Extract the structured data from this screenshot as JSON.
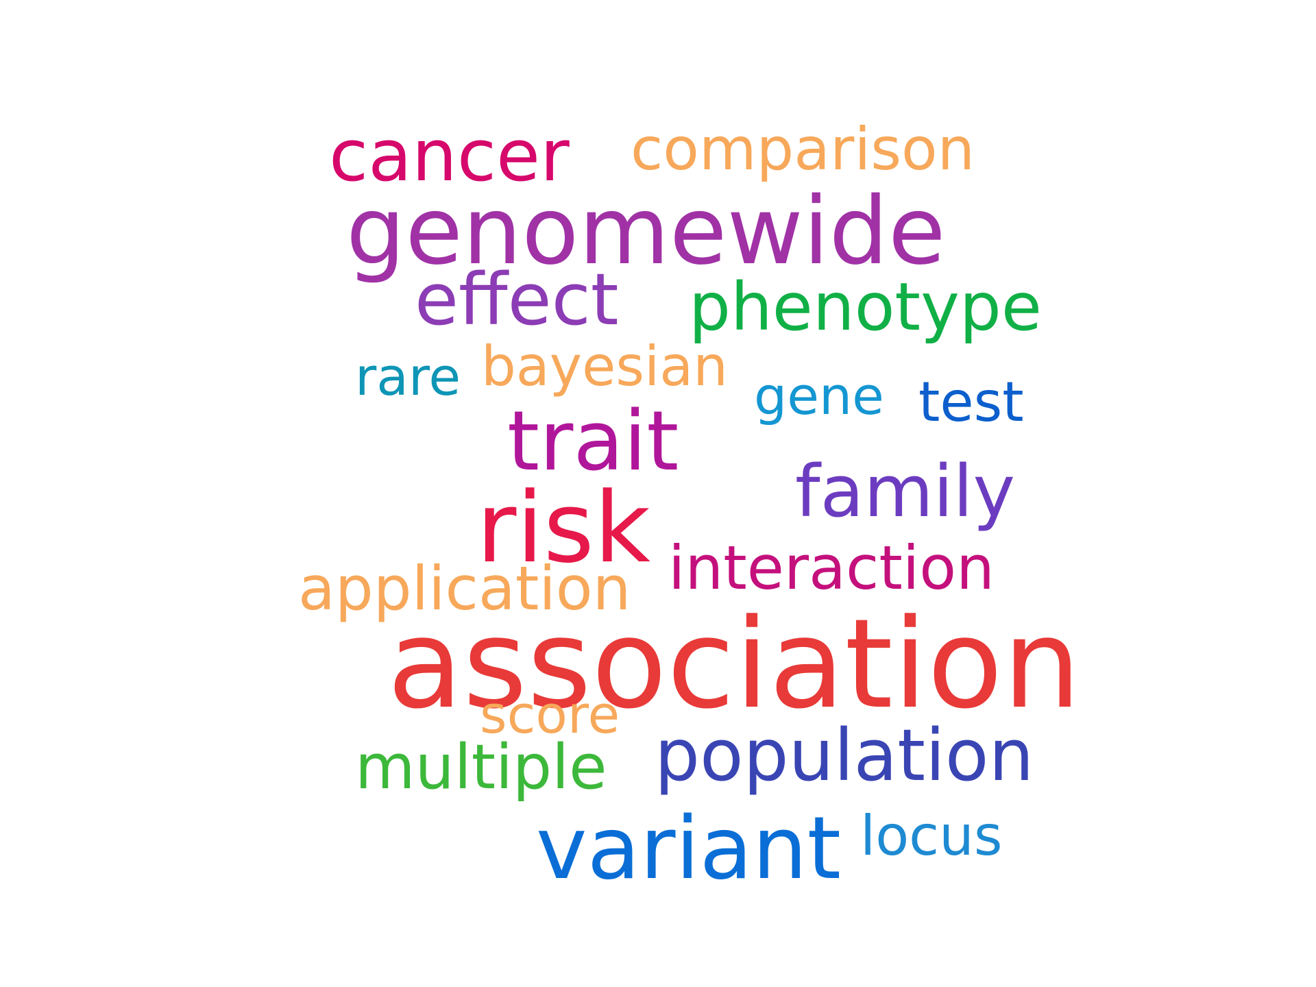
{
  "words": [
    {
      "key": "cancer",
      "text": "cancer",
      "color": "#d6086b"
    },
    {
      "key": "comparison",
      "text": "comparison",
      "color": "#f7a85a"
    },
    {
      "key": "genomewide",
      "text": "genomewide",
      "color": "#a032a6"
    },
    {
      "key": "effect",
      "text": "effect",
      "color": "#8c3cb4"
    },
    {
      "key": "phenotype",
      "text": "phenotype",
      "color": "#10b046"
    },
    {
      "key": "rare",
      "text": "rare",
      "color": "#0e95b6"
    },
    {
      "key": "bayesian",
      "text": "bayesian",
      "color": "#f7a85a"
    },
    {
      "key": "gene",
      "text": "gene",
      "color": "#1496d2"
    },
    {
      "key": "test",
      "text": "test",
      "color": "#0c5fcc"
    },
    {
      "key": "trait",
      "text": "trait",
      "color": "#b0169a"
    },
    {
      "key": "family",
      "text": "family",
      "color": "#6c3cc0"
    },
    {
      "key": "risk",
      "text": "risk",
      "color": "#e6194a"
    },
    {
      "key": "interaction",
      "text": "interaction",
      "color": "#c4107c"
    },
    {
      "key": "application",
      "text": "application",
      "color": "#f7a85a"
    },
    {
      "key": "association",
      "text": "association",
      "color": "#e83a38"
    },
    {
      "key": "score",
      "text": "score",
      "color": "#f7a85a"
    },
    {
      "key": "population",
      "text": "population",
      "color": "#3a45b4"
    },
    {
      "key": "multiple",
      "text": "multiple",
      "color": "#3cb83a"
    },
    {
      "key": "variant",
      "text": "variant",
      "color": "#0a6ed6"
    },
    {
      "key": "locus",
      "text": "locus",
      "color": "#1e8ad2"
    }
  ]
}
